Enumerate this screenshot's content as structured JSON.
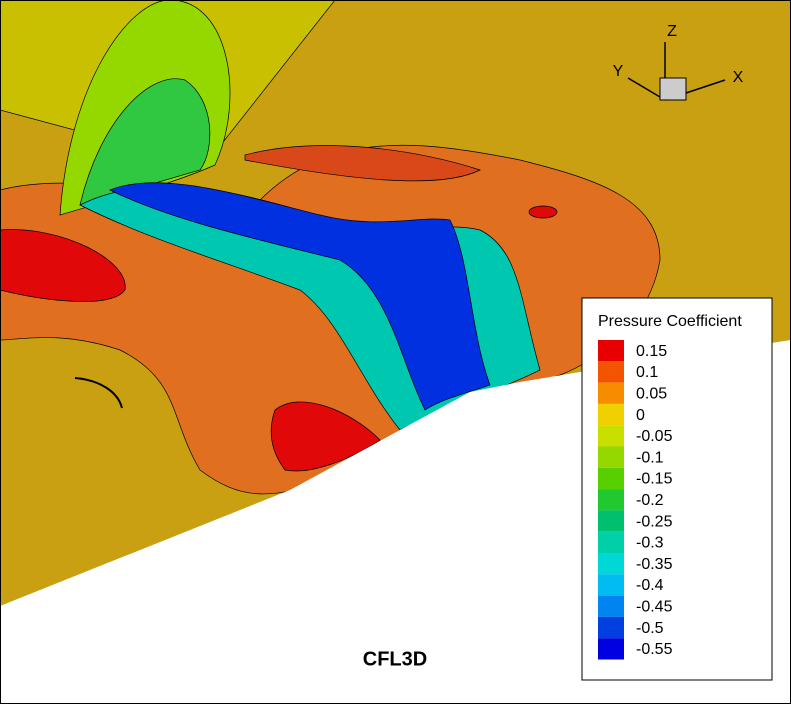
{
  "title": "CFL3D",
  "legend": {
    "title": "Pressure Coefficient",
    "levels": [
      {
        "value": 0.15,
        "color": "#e80000"
      },
      {
        "value": 0.1,
        "color": "#f25400"
      },
      {
        "value": 0.05,
        "color": "#f88c00"
      },
      {
        "value": 0,
        "color": "#f0d000"
      },
      {
        "value": -0.05,
        "color": "#c8e000"
      },
      {
        "value": -0.1,
        "color": "#94d800"
      },
      {
        "value": -0.15,
        "color": "#58d000"
      },
      {
        "value": -0.2,
        "color": "#22c830"
      },
      {
        "value": -0.25,
        "color": "#00c070"
      },
      {
        "value": -0.3,
        "color": "#00d0a8"
      },
      {
        "value": -0.35,
        "color": "#00d8d8"
      },
      {
        "value": -0.4,
        "color": "#00bcf0"
      },
      {
        "value": -0.45,
        "color": "#0084f0"
      },
      {
        "value": -0.5,
        "color": "#0040e0"
      },
      {
        "value": -0.55,
        "color": "#0000e0"
      }
    ]
  },
  "axes_triad": {
    "x": "X",
    "y": "Y",
    "z": "Z"
  }
}
